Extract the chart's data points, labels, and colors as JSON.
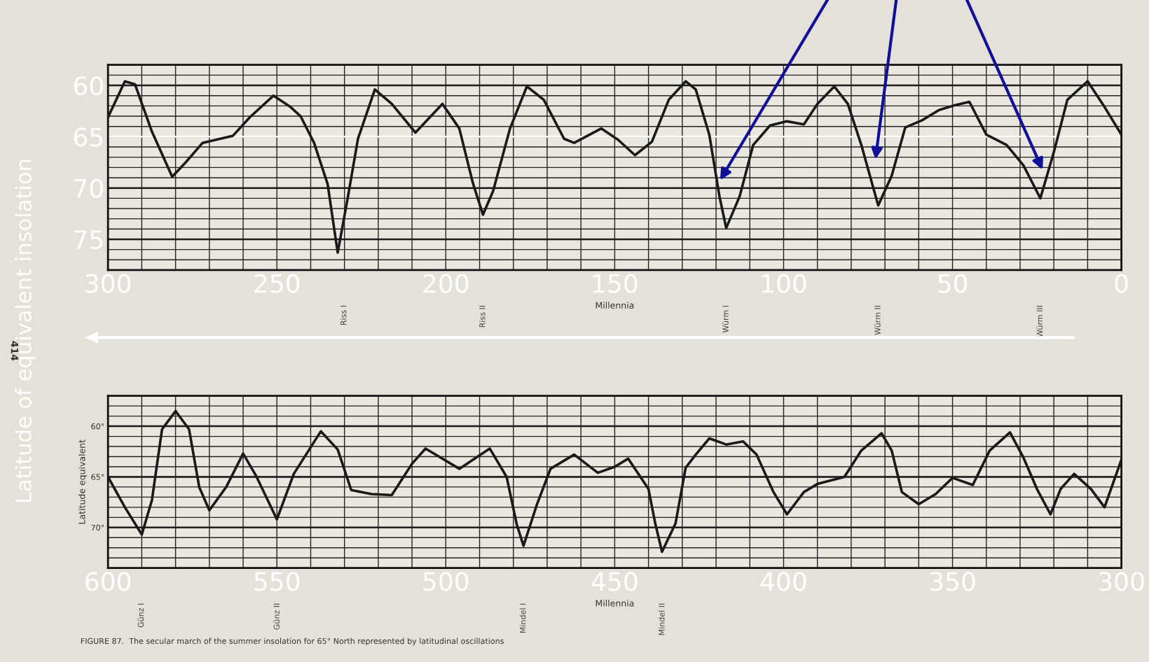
{
  "chart_data": [
    {
      "type": "line",
      "ylabel": "Latitude of equivalent insolation",
      "xlabel": "Millennia",
      "grid": true,
      "xlim": [
        300,
        0
      ],
      "ylim": [
        78,
        58
      ],
      "xticks": [
        300,
        {
          "value": 290,
          "label": null
        },
        {
          "value": 280,
          "label": null
        },
        {
          "value": 270,
          "label": null
        },
        {
          "value": 260,
          "label": null
        },
        250,
        {
          "value": 240,
          "label": null
        },
        {
          "value": 230,
          "label": null
        },
        {
          "value": 220,
          "label": null
        },
        {
          "value": 210,
          "label": null
        },
        200,
        {
          "value": 190,
          "label": null
        },
        {
          "value": 180,
          "label": null
        },
        {
          "value": 170,
          "label": null
        },
        {
          "value": 160,
          "label": null
        },
        150,
        {
          "value": 140,
          "label": null
        },
        {
          "value": 130,
          "label": null
        },
        {
          "value": 120,
          "label": null
        },
        {
          "value": 110,
          "label": null
        },
        100,
        {
          "value": 90,
          "label": null
        },
        {
          "value": 80,
          "label": null
        },
        {
          "value": 70,
          "label": null
        },
        {
          "value": 60,
          "label": null
        },
        50,
        {
          "value": 40,
          "label": null
        },
        {
          "value": 30,
          "label": null
        },
        {
          "value": 20,
          "label": null
        },
        {
          "value": 10,
          "label": null
        },
        0
      ],
      "yticks": [
        {
          "value": 58,
          "label": null
        },
        {
          "value": 59,
          "label": null
        },
        60,
        {
          "value": 61,
          "label": null
        },
        {
          "value": 62,
          "label": null
        },
        {
          "value": 63,
          "label": null
        },
        {
          "value": 64,
          "label": null
        },
        65,
        {
          "value": 66,
          "label": null
        },
        {
          "value": 67,
          "label": null
        },
        {
          "value": 68,
          "label": null
        },
        {
          "value": 69,
          "label": null
        },
        70,
        {
          "value": 71,
          "label": null
        },
        {
          "value": 72,
          "label": null
        },
        {
          "value": 73,
          "label": null
        },
        {
          "value": 74,
          "label": null
        },
        75,
        {
          "value": 76,
          "label": null
        },
        {
          "value": 77,
          "label": null
        },
        {
          "value": 78,
          "label": null
        }
      ],
      "ref_lines": [
        {
          "axis": "y",
          "value": 65,
          "label": null,
          "color": "#ffffff"
        }
      ],
      "series": [
        {
          "color": "#1a1a1a",
          "x": [
            300,
            295,
            292,
            287,
            281,
            277,
            272,
            263,
            258,
            251,
            246,
            243,
            239,
            235,
            232,
            229,
            226,
            221,
            216,
            209,
            201,
            196,
            192,
            189,
            186,
            181,
            176,
            171,
            165,
            162,
            154,
            149,
            144,
            139,
            134,
            129,
            126,
            122,
            119,
            117,
            113,
            109,
            104,
            99,
            94,
            90,
            85,
            81,
            77,
            72,
            68,
            64,
            59,
            54,
            49,
            45,
            40,
            34,
            29,
            24,
            20,
            16,
            10,
            5,
            0
          ],
          "values": [
            63.1,
            59.6,
            59.9,
            64.5,
            68.9,
            67.5,
            65.6,
            64.9,
            63.1,
            61,
            62.1,
            63,
            65.6,
            69.6,
            76.3,
            70.9,
            65.2,
            60.4,
            61.8,
            64.6,
            61.8,
            64.2,
            69.5,
            72.6,
            70.3,
            64.2,
            60.1,
            61.4,
            65.2,
            65.6,
            64.2,
            65.3,
            66.8,
            65.5,
            61.4,
            59.6,
            60.4,
            64.8,
            70.8,
            73.9,
            70.8,
            65.8,
            63.9,
            63.5,
            63.8,
            61.8,
            60.1,
            61.8,
            65.8,
            71.7,
            68.8,
            64.1,
            63.4,
            62.4,
            61.9,
            61.6,
            64.8,
            65.8,
            67.8,
            71,
            66.5,
            61.4,
            59.6,
            62.1,
            64.8
          ]
        }
      ],
      "annotations": [
        "414",
        "Riss I",
        "Riss II",
        "Würm I",
        "Würm II",
        "Würm III"
      ]
    },
    {
      "type": "line",
      "ylabel": "Latitude equivalent",
      "xlabel": "Millennia",
      "grid": true,
      "xlim": [
        600,
        300
      ],
      "ylim": [
        74,
        57
      ],
      "xticks": [
        600,
        {
          "value": 590,
          "label": null
        },
        {
          "value": 580,
          "label": null
        },
        {
          "value": 570,
          "label": null
        },
        {
          "value": 560,
          "label": null
        },
        550,
        {
          "value": 540,
          "label": null
        },
        {
          "value": 530,
          "label": null
        },
        {
          "value": 520,
          "label": null
        },
        {
          "value": 510,
          "label": null
        },
        500,
        {
          "value": 490,
          "label": null
        },
        {
          "value": 480,
          "label": null
        },
        {
          "value": 470,
          "label": null
        },
        {
          "value": 460,
          "label": null
        },
        450,
        {
          "value": 440,
          "label": null
        },
        {
          "value": 430,
          "label": null
        },
        {
          "value": 420,
          "label": null
        },
        {
          "value": 410,
          "label": null
        },
        400,
        {
          "value": 390,
          "label": null
        },
        {
          "value": 380,
          "label": null
        },
        {
          "value": 370,
          "label": null
        },
        {
          "value": 360,
          "label": null
        },
        350,
        {
          "value": 340,
          "label": null
        },
        {
          "value": 330,
          "label": null
        },
        {
          "value": 320,
          "label": null
        },
        {
          "value": 310,
          "label": null
        },
        300
      ],
      "yticks": [
        {
          "value": 57,
          "label": null
        },
        {
          "value": 58,
          "label": null
        },
        {
          "value": 59,
          "label": null
        },
        {
          "value": 60,
          "label": "60°"
        },
        {
          "value": 61,
          "label": null
        },
        {
          "value": 62,
          "label": null
        },
        {
          "value": 63,
          "label": null
        },
        {
          "value": 64,
          "label": null
        },
        {
          "value": 65,
          "label": "65°"
        },
        {
          "value": 66,
          "label": null
        },
        {
          "value": 67,
          "label": null
        },
        {
          "value": 68,
          "label": null
        },
        {
          "value": 69,
          "label": null
        },
        {
          "value": 70,
          "label": "70°"
        },
        {
          "value": 71,
          "label": null
        },
        {
          "value": 72,
          "label": null
        },
        {
          "value": 73,
          "label": null
        },
        {
          "value": 74,
          "label": null
        }
      ],
      "series": [
        {
          "color": "#1a1a1a",
          "x": [
            600,
            595,
            590,
            587,
            584,
            580,
            576,
            573,
            570,
            565,
            560,
            556,
            550,
            545,
            537,
            532,
            528,
            522,
            516,
            510,
            506,
            496,
            487,
            482,
            479,
            477,
            473,
            469,
            462,
            455,
            450,
            446,
            440,
            438,
            436,
            432,
            429,
            426,
            422,
            417,
            412,
            408,
            403,
            399,
            394,
            390,
            382,
            377,
            371,
            368,
            365,
            360,
            355,
            350,
            344,
            339,
            333,
            329,
            325,
            321,
            318,
            314,
            309,
            305,
            300
          ],
          "values": [
            65,
            68,
            70.7,
            67.3,
            60.3,
            58.5,
            60.3,
            66,
            68.3,
            66,
            62.7,
            65,
            69.2,
            64.7,
            60.5,
            62.3,
            66.3,
            66.7,
            66.8,
            63.7,
            62.2,
            64.2,
            62.2,
            65,
            69.7,
            71.8,
            67.7,
            64.2,
            62.8,
            64.6,
            64,
            63.2,
            66.2,
            69.6,
            72.4,
            69.6,
            64.1,
            62.8,
            61.2,
            61.8,
            61.5,
            62.8,
            66.5,
            68.7,
            66.5,
            65.7,
            65,
            62.4,
            60.7,
            62.4,
            66.5,
            67.7,
            66.7,
            65.1,
            65.8,
            62.4,
            60.6,
            63.1,
            66.2,
            68.7,
            66.2,
            64.7,
            66.2,
            68,
            63.3
          ]
        }
      ],
      "annotations": [
        "FIGURE 87.  The secular march of the summer insolation for 65° North represented by latitudinal oscillations",
        "Günz I",
        "Günz II",
        "Mindel I",
        "Mindel II"
      ]
    }
  ]
}
